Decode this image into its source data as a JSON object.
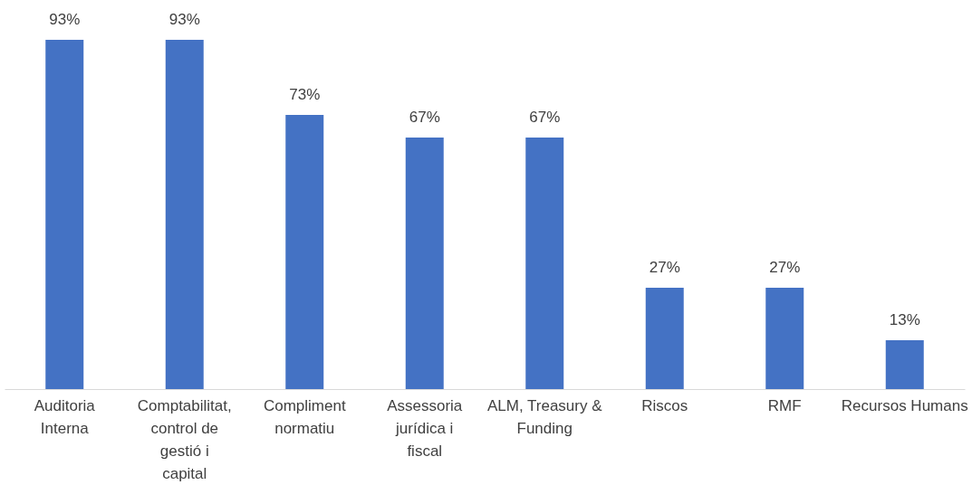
{
  "chart_data": {
    "type": "bar",
    "categories": [
      "Auditoria Interna",
      "Comptabilitat, control de gestió i capital",
      "Compliment normatiu",
      "Assessoria jurídica i fiscal",
      "ALM, Treasury & Funding",
      "Riscos",
      "RMF",
      "Recursos Humans"
    ],
    "values": [
      93,
      93,
      73,
      67,
      67,
      27,
      27,
      13
    ],
    "value_labels": [
      "93%",
      "93%",
      "73%",
      "67%",
      "67%",
      "27%",
      "27%",
      "13%"
    ],
    "color": "#4472c4",
    "tick_labels": "x",
    "grid": false
  }
}
